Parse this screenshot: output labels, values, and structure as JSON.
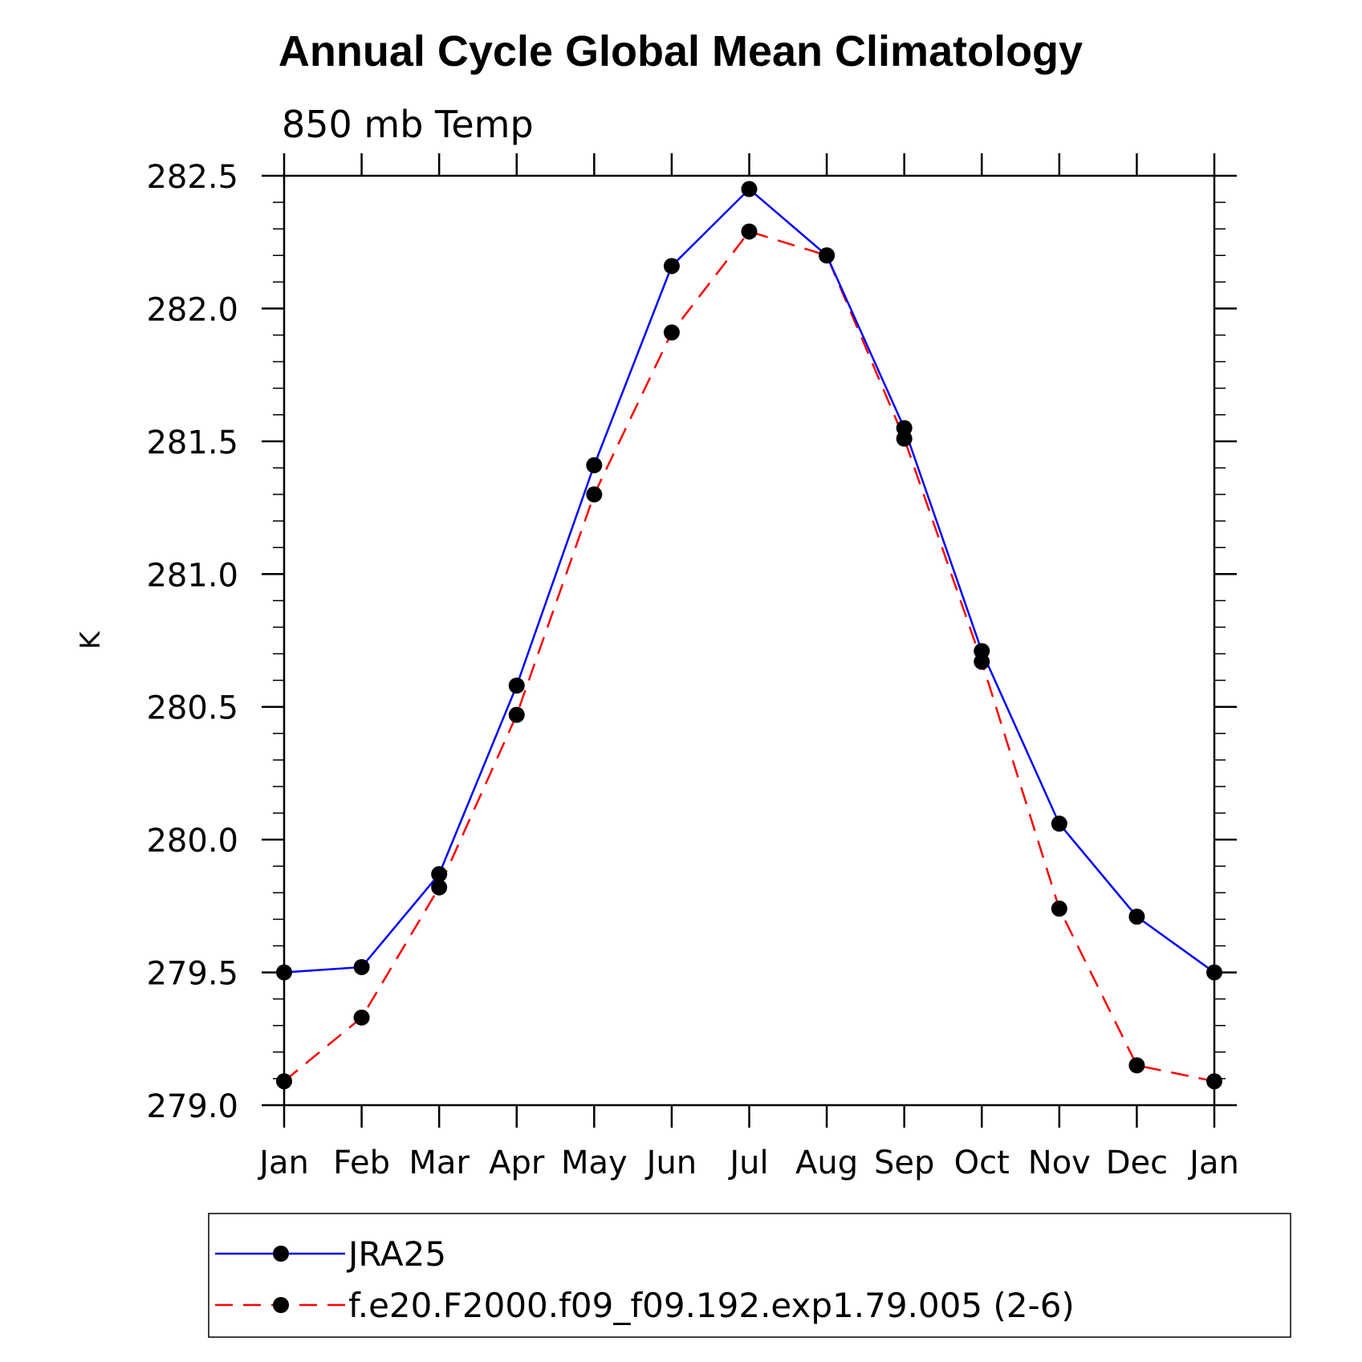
{
  "chart_data": {
    "type": "line",
    "title": "Annual Cycle Global Mean Climatology",
    "subtitle": "850 mb Temp",
    "xlabel": "",
    "ylabel": "K",
    "categories": [
      "Jan",
      "Feb",
      "Mar",
      "Apr",
      "May",
      "Jun",
      "Jul",
      "Aug",
      "Sep",
      "Oct",
      "Nov",
      "Dec",
      "Jan"
    ],
    "ylim": [
      279.0,
      282.5
    ],
    "yticks": [
      "279.0",
      "279.5",
      "280.0",
      "280.5",
      "281.0",
      "281.5",
      "282.0",
      "282.5"
    ],
    "y_minor_step": 0.1,
    "grid": false,
    "legend_position": "bottom",
    "series": [
      {
        "name": "JRA25",
        "color": "#0000ff",
        "line_style": "solid",
        "marker": "filled-circle",
        "values": [
          279.5,
          279.52,
          279.87,
          280.58,
          281.41,
          282.16,
          282.45,
          282.2,
          281.55,
          280.71,
          280.06,
          279.71,
          279.5
        ]
      },
      {
        "name": "f.e20.F2000.f09_f09.192.exp1.79.005 (2-6)",
        "color": "#ff0000",
        "line_style": "dashed",
        "marker": "filled-circle",
        "values": [
          279.09,
          279.33,
          279.82,
          280.47,
          281.3,
          281.91,
          282.29,
          282.2,
          281.51,
          280.67,
          279.74,
          279.15,
          279.09
        ]
      }
    ]
  }
}
